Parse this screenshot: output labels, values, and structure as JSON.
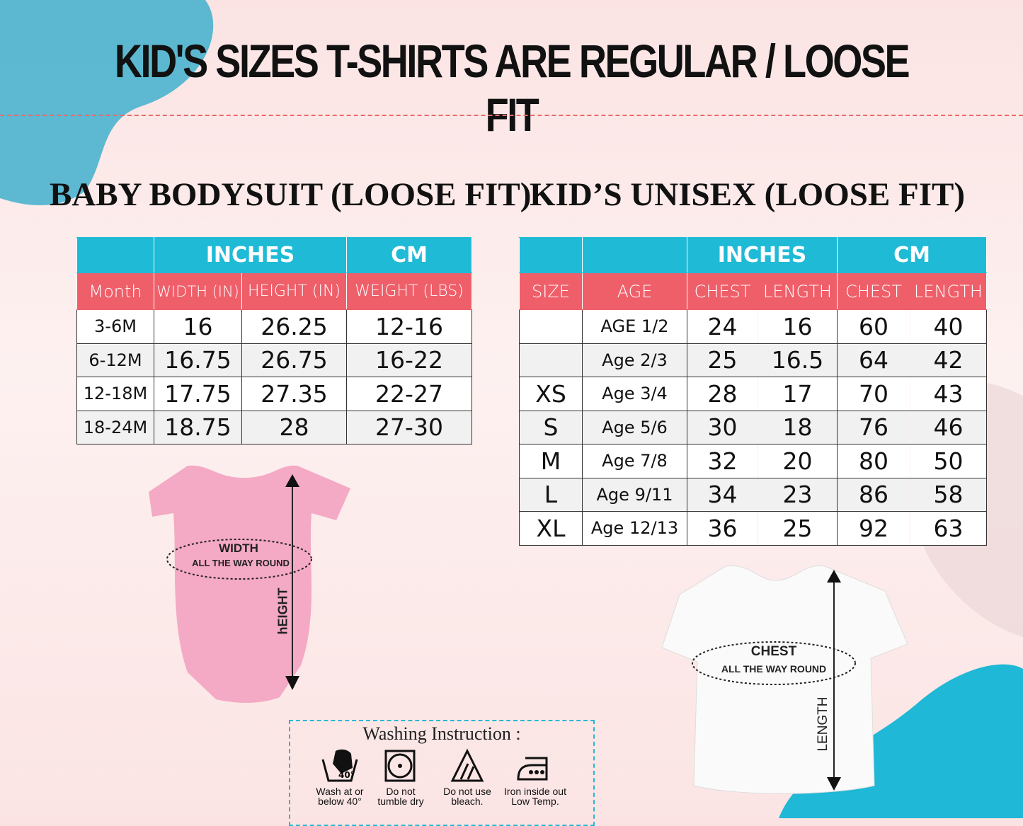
{
  "title": "KID'S SIZES T-SHIRTS ARE REGULAR / LOOSE FIT",
  "colors": {
    "header_teal": "#1fbad6",
    "header_red": "#ef5f6a"
  },
  "baby": {
    "heading": "BABY BODYSUIT (LOOSE FIT)",
    "group_headers": [
      "",
      "INCHES",
      "CM"
    ],
    "columns": [
      "Month",
      "WIDTH (IN)",
      "HEIGHT (IN)",
      "WEIGHT (LBS)"
    ],
    "rows": [
      [
        "3-6M",
        "16",
        "26.25",
        "12-16"
      ],
      [
        "6-12M",
        "16.75",
        "26.75",
        "16-22"
      ],
      [
        "12-18M",
        "17.75",
        "27.35",
        "22-27"
      ],
      [
        "18-24M",
        "18.75",
        "28",
        "27-30"
      ]
    ],
    "width_label": "WIDTH",
    "width_sub": "ALL THE WAY ROUND",
    "height_label": "hEIGHT"
  },
  "kids": {
    "heading": "KID’S UNISEX (LOOSE FIT)",
    "group_headers": [
      "",
      "",
      "INCHES",
      "CM"
    ],
    "columns": [
      "SIZE",
      "AGE",
      "CHEST",
      "LENGTH",
      "CHEST",
      "LENGTH"
    ],
    "rows": [
      [
        "",
        "AGE 1/2",
        "24",
        "16",
        "60",
        "40"
      ],
      [
        "",
        "Age 2/3",
        "25",
        "16.5",
        "64",
        "42"
      ],
      [
        "XS",
        "Age 3/4",
        "28",
        "17",
        "70",
        "43"
      ],
      [
        "S",
        "Age 5/6",
        "30",
        "18",
        "76",
        "46"
      ],
      [
        "M",
        "Age 7/8",
        "32",
        "20",
        "80",
        "50"
      ],
      [
        "L",
        "Age 9/11",
        "34",
        "23",
        "86",
        "58"
      ],
      [
        "XL",
        "Age 12/13",
        "36",
        "25",
        "92",
        "63"
      ]
    ],
    "chest_label": "CHEST",
    "chest_sub": "ALL THE WAY ROUND",
    "length_label": "LENGTH"
  },
  "washing": {
    "title": "Washing Instruction :",
    "items": [
      {
        "icon": "wash-40-icon",
        "l1": "Wash at or",
        "l2": "below 40°"
      },
      {
        "icon": "no-tumble-dry-icon",
        "l1": "Do  not",
        "l2": "tumble dry"
      },
      {
        "icon": "no-bleach-icon",
        "l1": "Do not use",
        "l2": "bleach."
      },
      {
        "icon": "iron-low-icon",
        "l1": "Iron inside out",
        "l2": "Low Temp."
      }
    ]
  }
}
